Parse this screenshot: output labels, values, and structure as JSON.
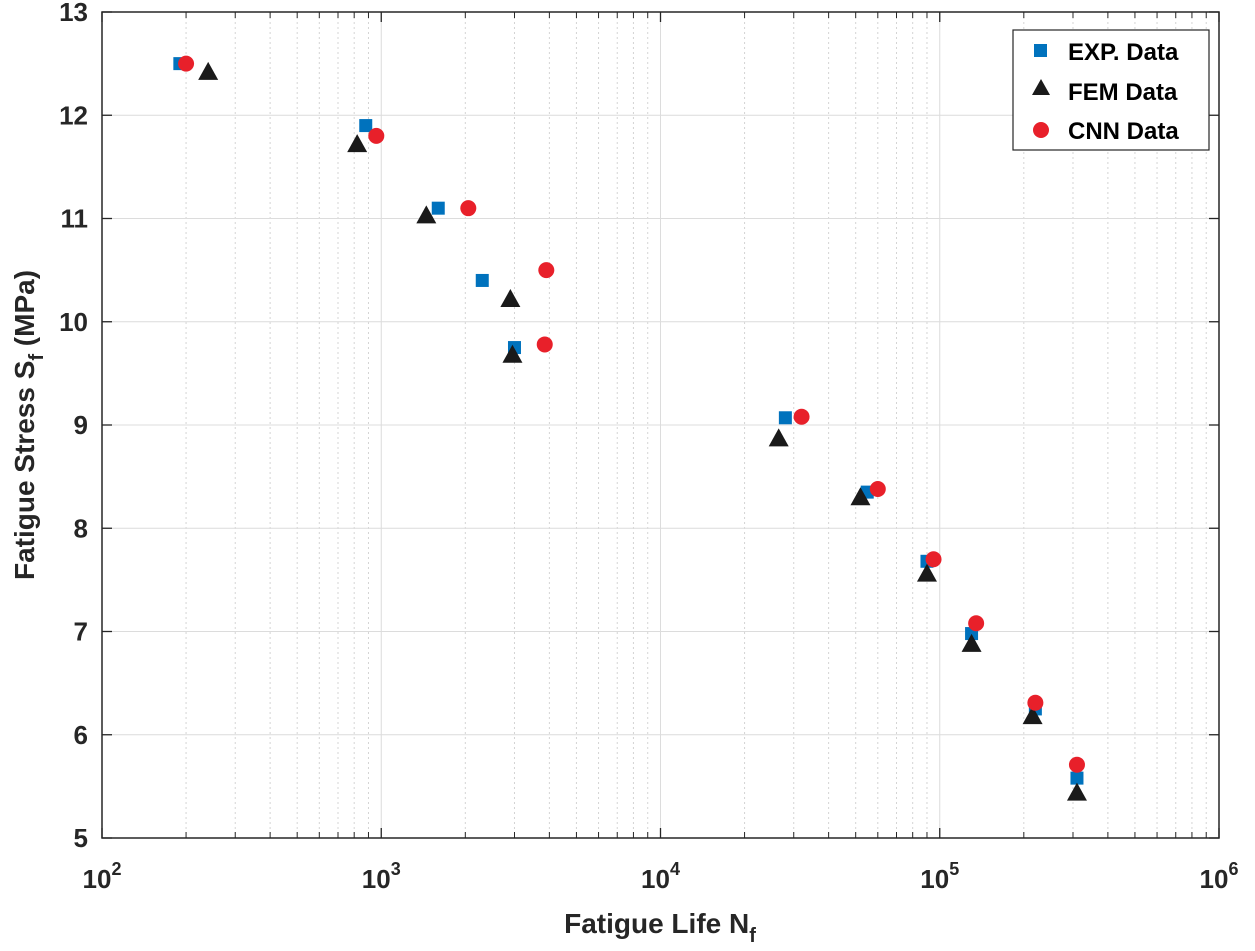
{
  "chart_data": {
    "type": "scatter",
    "title": "",
    "xlabel": "Fatigue Life N",
    "xlabel_subscript": "f",
    "ylabel": "Fatigue Stress S",
    "ylabel_subscript": "f",
    "ylabel_suffix": " (MPa)",
    "xscale": "log",
    "xlim": [
      100,
      1000000
    ],
    "ylim": [
      5,
      13
    ],
    "x_tick_labels": [
      {
        "base": "10",
        "exp": "2"
      },
      {
        "base": "10",
        "exp": "3"
      },
      {
        "base": "10",
        "exp": "4"
      },
      {
        "base": "10",
        "exp": "5"
      },
      {
        "base": "10",
        "exp": "6"
      }
    ],
    "y_ticks": [
      5,
      6,
      7,
      8,
      9,
      10,
      11,
      12,
      13
    ],
    "grid": true,
    "legend_position": "top-right",
    "series": [
      {
        "name": "EXP. Data",
        "marker": "square",
        "color": "#0072BD",
        "points": [
          [
            190,
            12.5
          ],
          [
            880,
            11.9
          ],
          [
            1600,
            11.1
          ],
          [
            2300,
            10.4
          ],
          [
            3000,
            9.75
          ],
          [
            28000,
            9.07
          ],
          [
            55000,
            8.35
          ],
          [
            90000,
            7.68
          ],
          [
            130000,
            6.98
          ],
          [
            220000,
            6.25
          ],
          [
            310000,
            5.58
          ]
        ]
      },
      {
        "name": "FEM Data",
        "marker": "triangle",
        "color": "#1a1a1a",
        "points": [
          [
            240,
            12.42
          ],
          [
            820,
            11.72
          ],
          [
            1450,
            11.03
          ],
          [
            2900,
            10.22
          ],
          [
            2950,
            9.68
          ],
          [
            26500,
            8.87
          ],
          [
            52000,
            8.3
          ],
          [
            90000,
            7.56
          ],
          [
            130000,
            6.88
          ],
          [
            215000,
            6.18
          ],
          [
            310000,
            5.44
          ]
        ]
      },
      {
        "name": "CNN Data",
        "marker": "circle",
        "color": "#E8202A",
        "points": [
          [
            200,
            12.5
          ],
          [
            960,
            11.8
          ],
          [
            2050,
            11.1
          ],
          [
            3900,
            10.5
          ],
          [
            3850,
            9.78
          ],
          [
            32000,
            9.08
          ],
          [
            60000,
            8.38
          ],
          [
            95000,
            7.7
          ],
          [
            135000,
            7.08
          ],
          [
            220000,
            6.31
          ],
          [
            310000,
            5.71
          ]
        ]
      }
    ]
  }
}
